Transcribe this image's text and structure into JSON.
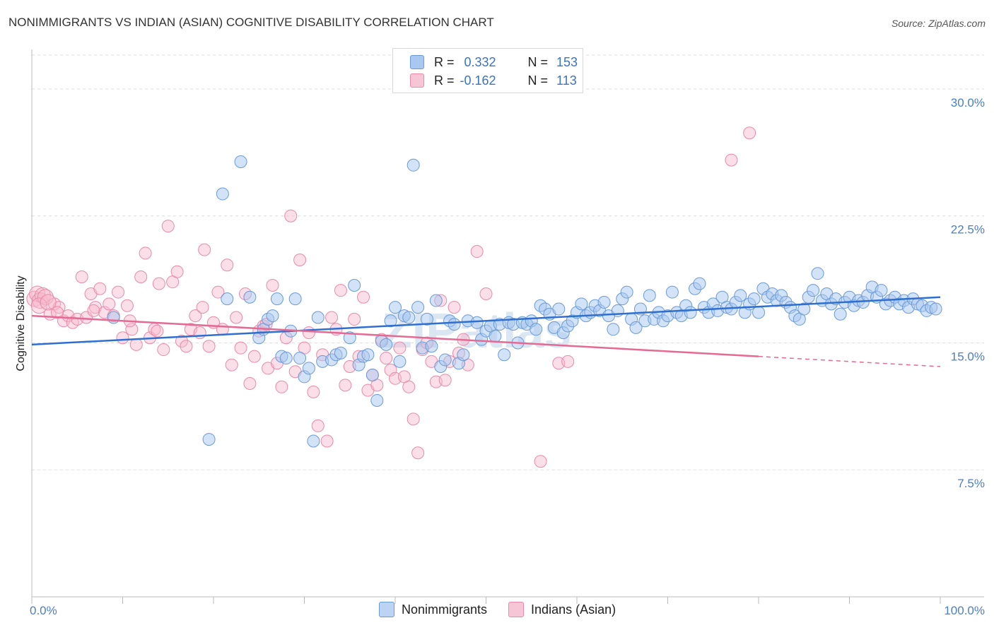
{
  "title": "NONIMMIGRANTS VS INDIAN (ASIAN) COGNITIVE DISABILITY CORRELATION CHART",
  "source": "Source: ZipAtlas.com",
  "watermark": "ZIPatlas",
  "legend": {
    "rows": [
      {
        "r_label": "R =",
        "r_value": "0.332",
        "n_label": "N =",
        "n_value": "153"
      },
      {
        "r_label": "R =",
        "r_value": "-0.162",
        "n_label": "N =",
        "n_value": "113"
      }
    ]
  },
  "bottom_legend": [
    "Nonimmigrants",
    "Indians (Asian)"
  ],
  "colors": {
    "blue_fill": "#a8c8f0",
    "blue_stroke": "#6a9ad8",
    "blue_line": "#2f6fd0",
    "pink_fill": "#f7b7cb",
    "pink_stroke": "#e98aa8",
    "pink_line": "#e56a93",
    "tick_text": "#4a7fc9",
    "grid": "#dddddd"
  },
  "chart_data": {
    "type": "scatter",
    "title": "NONIMMIGRANTS VS INDIAN (ASIAN) COGNITIVE DISABILITY CORRELATION CHART",
    "xlabel": "",
    "ylabel": "Cognitive Disability",
    "xlim": [
      0,
      100
    ],
    "ylim": [
      0,
      32
    ],
    "x_tick_labels": [
      "0.0%",
      "100.0%"
    ],
    "y_ticks": [
      7.5,
      15.0,
      22.5,
      30.0
    ],
    "y_tick_labels": [
      "7.5%",
      "15.0%",
      "22.5%",
      "30.0%"
    ],
    "grid": true,
    "series": [
      {
        "name": "Nonimmigrants",
        "r": 0.332,
        "n": 153,
        "trend": {
          "x": [
            0,
            100
          ],
          "y": [
            14.9,
            17.7
          ]
        },
        "points": [
          [
            9,
            16.5
          ],
          [
            19.5,
            9.3
          ],
          [
            21,
            23.8
          ],
          [
            21.5,
            17.6
          ],
          [
            23,
            25.7
          ],
          [
            24,
            17.7
          ],
          [
            25,
            15.3
          ],
          [
            25.5,
            15.8
          ],
          [
            26,
            16.4
          ],
          [
            26.5,
            16.6
          ],
          [
            27,
            17.6
          ],
          [
            27.5,
            14.2
          ],
          [
            28,
            14.1
          ],
          [
            28.5,
            15.7
          ],
          [
            29,
            17.6
          ],
          [
            29.5,
            14.1
          ],
          [
            30,
            13.0
          ],
          [
            30.5,
            13.5
          ],
          [
            31,
            9.2
          ],
          [
            31.5,
            16.5
          ],
          [
            32,
            13.9
          ],
          [
            33,
            14.0
          ],
          [
            33.5,
            14.3
          ],
          [
            34,
            14.4
          ],
          [
            35,
            15.3
          ],
          [
            35.5,
            18.4
          ],
          [
            36,
            13.7
          ],
          [
            36.5,
            14.2
          ],
          [
            37,
            14.3
          ],
          [
            37.5,
            13.1
          ],
          [
            38,
            11.6
          ],
          [
            38.5,
            15.1
          ],
          [
            39,
            14.9
          ],
          [
            39.5,
            16.3
          ],
          [
            40,
            17.1
          ],
          [
            40.5,
            13.9
          ],
          [
            41,
            16.6
          ],
          [
            41.5,
            16.5
          ],
          [
            42,
            25.5
          ],
          [
            42.5,
            17.1
          ],
          [
            43,
            14.7
          ],
          [
            43.5,
            16.4
          ],
          [
            44,
            14.8
          ],
          [
            44.5,
            17.5
          ],
          [
            45,
            13.6
          ],
          [
            45.5,
            14.0
          ],
          [
            46,
            16.3
          ],
          [
            46.5,
            16.1
          ],
          [
            47,
            13.8
          ],
          [
            47.5,
            14.3
          ],
          [
            48,
            16.3
          ],
          [
            49,
            16.2
          ],
          [
            49.5,
            15.2
          ],
          [
            50,
            15.7
          ],
          [
            50.5,
            16.0
          ],
          [
            51,
            15.4
          ],
          [
            51.5,
            16.1
          ],
          [
            52,
            14.3
          ],
          [
            52.5,
            16.2
          ],
          [
            53,
            16.1
          ],
          [
            53.5,
            15.0
          ],
          [
            54,
            16.2
          ],
          [
            54.5,
            16.1
          ],
          [
            55,
            16.3
          ],
          [
            55.5,
            15.8
          ],
          [
            56,
            17.2
          ],
          [
            56.5,
            17.0
          ],
          [
            57,
            16.7
          ],
          [
            57.5,
            15.9
          ],
          [
            58,
            17.0
          ],
          [
            58.5,
            15.6
          ],
          [
            59,
            16.0
          ],
          [
            59.5,
            16.3
          ],
          [
            60,
            16.8
          ],
          [
            60.5,
            17.3
          ],
          [
            61,
            16.6
          ],
          [
            61.5,
            16.8
          ],
          [
            62,
            17.2
          ],
          [
            62.5,
            16.9
          ],
          [
            63,
            17.4
          ],
          [
            63.5,
            16.6
          ],
          [
            64,
            15.8
          ],
          [
            64.5,
            16.9
          ],
          [
            65,
            17.6
          ],
          [
            65.5,
            18.0
          ],
          [
            66,
            16.4
          ],
          [
            66.5,
            15.9
          ],
          [
            67,
            17.0
          ],
          [
            67.5,
            16.3
          ],
          [
            68,
            17.8
          ],
          [
            68.5,
            16.4
          ],
          [
            69,
            16.8
          ],
          [
            69.5,
            16.3
          ],
          [
            70,
            16.6
          ],
          [
            70.5,
            18.0
          ],
          [
            71,
            16.8
          ],
          [
            71.5,
            16.6
          ],
          [
            72,
            17.2
          ],
          [
            72.5,
            16.8
          ],
          [
            73,
            18.2
          ],
          [
            73.5,
            18.5
          ],
          [
            74,
            17.1
          ],
          [
            74.5,
            16.8
          ],
          [
            75,
            17.3
          ],
          [
            75.5,
            16.9
          ],
          [
            76,
            17.7
          ],
          [
            76.5,
            17.1
          ],
          [
            77,
            17.0
          ],
          [
            77.5,
            17.4
          ],
          [
            78,
            17.8
          ],
          [
            78.5,
            16.8
          ],
          [
            79,
            17.3
          ],
          [
            79.5,
            17.6
          ],
          [
            80,
            16.8
          ],
          [
            80.5,
            18.2
          ],
          [
            81,
            17.7
          ],
          [
            81.5,
            17.9
          ],
          [
            82,
            17.5
          ],
          [
            82.5,
            17.8
          ],
          [
            83,
            17.4
          ],
          [
            83.5,
            17.1
          ],
          [
            84,
            16.6
          ],
          [
            84.5,
            16.4
          ],
          [
            85,
            17.0
          ],
          [
            85.5,
            17.7
          ],
          [
            86,
            18.1
          ],
          [
            86.5,
            19.1
          ],
          [
            87,
            17.5
          ],
          [
            87.5,
            17.9
          ],
          [
            88,
            17.3
          ],
          [
            88.5,
            17.6
          ],
          [
            89,
            16.7
          ],
          [
            89.5,
            17.4
          ],
          [
            90,
            17.7
          ],
          [
            90.5,
            17.2
          ],
          [
            91,
            17.5
          ],
          [
            91.5,
            17.4
          ],
          [
            92,
            17.8
          ],
          [
            92.5,
            18.3
          ],
          [
            93,
            17.7
          ],
          [
            93.5,
            18.1
          ],
          [
            94,
            17.3
          ],
          [
            94.5,
            17.5
          ],
          [
            95,
            17.7
          ],
          [
            95.5,
            17.3
          ],
          [
            96,
            17.5
          ],
          [
            96.5,
            17.1
          ],
          [
            97,
            17.6
          ],
          [
            97.5,
            17.3
          ],
          [
            98,
            17.2
          ],
          [
            98.5,
            16.9
          ],
          [
            99,
            17.1
          ],
          [
            99.5,
            17.0
          ]
        ]
      },
      {
        "name": "Indians (Asian)",
        "r": -0.162,
        "n": 113,
        "trend": {
          "x": [
            0,
            80,
            100
          ],
          "y": [
            16.6,
            14.2,
            13.6
          ],
          "solid_until": 80
        },
        "points": [
          [
            0.3,
            17.6
          ],
          [
            0.6,
            17.9
          ],
          [
            0.9,
            17.5
          ],
          [
            1.2,
            17.8
          ],
          [
            1.5,
            17.7
          ],
          [
            2,
            16.7
          ],
          [
            2.5,
            17.3
          ],
          [
            3,
            17.1
          ],
          [
            3.5,
            16.3
          ],
          [
            4,
            16.6
          ],
          [
            4.5,
            16.2
          ],
          [
            5,
            16.4
          ],
          [
            5.5,
            18.9
          ],
          [
            6,
            16.5
          ],
          [
            6.5,
            17.9
          ],
          [
            7,
            17.1
          ],
          [
            7.5,
            18.2
          ],
          [
            8,
            16.8
          ],
          [
            8.5,
            17.3
          ],
          [
            9,
            16.6
          ],
          [
            9.5,
            18.0
          ],
          [
            10,
            15.3
          ],
          [
            10.5,
            17.2
          ],
          [
            11,
            15.8
          ],
          [
            11.5,
            14.9
          ],
          [
            12,
            18.9
          ],
          [
            12.5,
            20.3
          ],
          [
            13,
            15.3
          ],
          [
            13.5,
            15.8
          ],
          [
            14,
            18.5
          ],
          [
            14.5,
            14.6
          ],
          [
            15,
            21.9
          ],
          [
            15.5,
            18.6
          ],
          [
            16,
            19.2
          ],
          [
            16.5,
            15.1
          ],
          [
            17,
            14.8
          ],
          [
            17.5,
            15.8
          ],
          [
            18,
            16.6
          ],
          [
            18.5,
            15.6
          ],
          [
            19,
            20.5
          ],
          [
            19.5,
            14.8
          ],
          [
            20,
            16.2
          ],
          [
            20.5,
            18.0
          ],
          [
            21,
            15.8
          ],
          [
            21.5,
            19.6
          ],
          [
            22,
            13.7
          ],
          [
            22.5,
            16.5
          ],
          [
            23,
            14.7
          ],
          [
            23.5,
            17.9
          ],
          [
            24,
            12.6
          ],
          [
            24.5,
            14.2
          ],
          [
            25,
            15.7
          ],
          [
            25.5,
            16.0
          ],
          [
            26,
            13.5
          ],
          [
            26.5,
            18.4
          ],
          [
            27,
            13.8
          ],
          [
            27.5,
            12.4
          ],
          [
            28,
            15.3
          ],
          [
            28.5,
            22.5
          ],
          [
            29,
            13.3
          ],
          [
            29.5,
            19.9
          ],
          [
            30,
            14.7
          ],
          [
            30.5,
            15.6
          ],
          [
            31,
            12.1
          ],
          [
            31.5,
            10.1
          ],
          [
            32,
            14.3
          ],
          [
            32.5,
            9.2
          ],
          [
            33,
            16.5
          ],
          [
            33.5,
            15.8
          ],
          [
            34,
            18.1
          ],
          [
            34.5,
            12.5
          ],
          [
            35,
            13.6
          ],
          [
            35.5,
            16.4
          ],
          [
            36,
            14.2
          ],
          [
            36.5,
            17.7
          ],
          [
            37,
            12.2
          ],
          [
            37.5,
            13.1
          ],
          [
            38,
            12.5
          ],
          [
            38.5,
            15.2
          ],
          [
            39,
            14.1
          ],
          [
            39.5,
            13.4
          ],
          [
            40,
            12.9
          ],
          [
            40.5,
            14.7
          ],
          [
            41,
            13.0
          ],
          [
            41.5,
            12.4
          ],
          [
            42,
            10.5
          ],
          [
            42.5,
            8.5
          ],
          [
            43,
            14.6
          ],
          [
            43.5,
            15.0
          ],
          [
            44,
            13.9
          ],
          [
            44.5,
            12.7
          ],
          [
            45,
            17.5
          ],
          [
            45.5,
            12.8
          ],
          [
            46,
            13.9
          ],
          [
            46.5,
            17.1
          ],
          [
            47,
            14.4
          ],
          [
            47.5,
            15.2
          ],
          [
            48,
            13.7
          ],
          [
            49,
            20.4
          ],
          [
            50,
            17.9
          ],
          [
            56,
            8.0
          ],
          [
            58,
            13.8
          ],
          [
            59,
            13.9
          ],
          [
            77,
            25.8
          ],
          [
            79,
            27.4
          ],
          [
            0.8,
            17.2
          ],
          [
            1.8,
            17.4
          ],
          [
            2.8,
            16.8
          ],
          [
            6.8,
            16.9
          ],
          [
            10.8,
            16.3
          ],
          [
            13.8,
            15.7
          ],
          [
            18.8,
            17.1
          ],
          [
            25.8,
            16.1
          ]
        ]
      }
    ]
  }
}
